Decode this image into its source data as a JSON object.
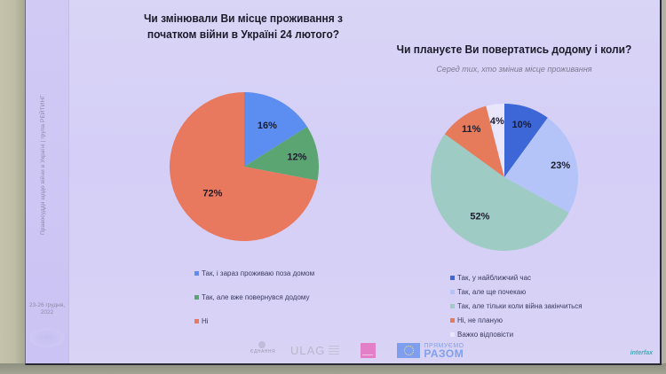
{
  "slide": {
    "left_chart": {
      "title": "Чи змінювали Ви місце проживання з початком війни в Україні 24 лютого?"
    },
    "right_chart": {
      "title": "Чи плануєте Ви повертатись додому і коли?",
      "subtitle": "Серед тих, хто змінив місце проживання"
    },
    "sidebar": {
      "vertical_text": "Правосуддя щодо війни в Україні | група РЕЙТИНГ",
      "date_line1": "23-26 грудня,",
      "date_line2": "2022"
    },
    "logos": {
      "ednannia": "ЄДНАННЯ",
      "ulag": "ULAG",
      "eu_line1": "ПРЯМУЄМО",
      "eu_line2": "РАЗОМ"
    },
    "watermark": "interfax"
  },
  "chart_data": [
    {
      "type": "pie",
      "title": "Чи змінювали Ви місце проживання з початком війни в Україні 24 лютого?",
      "categories": [
        "Так, і зараз проживаю поза домом",
        "Так, але вже повернувся додому",
        "Ні"
      ],
      "values": [
        16,
        12,
        72
      ],
      "labels": [
        "16%",
        "12%",
        "72%"
      ],
      "colors": [
        "#5b8ef0",
        "#5aa572",
        "#e8785e"
      ],
      "legend_position": "bottom"
    },
    {
      "type": "pie",
      "title": "Чи плануєте Ви повертатись додому і коли?",
      "subtitle": "Серед тих, хто змінив місце проживання",
      "categories": [
        "Так, у найближчий час",
        "Так, але ще почекаю",
        "Так, але тільки коли війна закінчиться",
        "Ні, не планую",
        "Важко відповісти"
      ],
      "values": [
        10,
        23,
        52,
        11,
        4
      ],
      "labels": [
        "10%",
        "23%",
        "52%",
        "11%",
        "4%"
      ],
      "colors": [
        "#3d66d6",
        "#b4c4f8",
        "#9ecbc4",
        "#e67b5c",
        "#e9e5fb"
      ],
      "legend_position": "bottom"
    }
  ]
}
